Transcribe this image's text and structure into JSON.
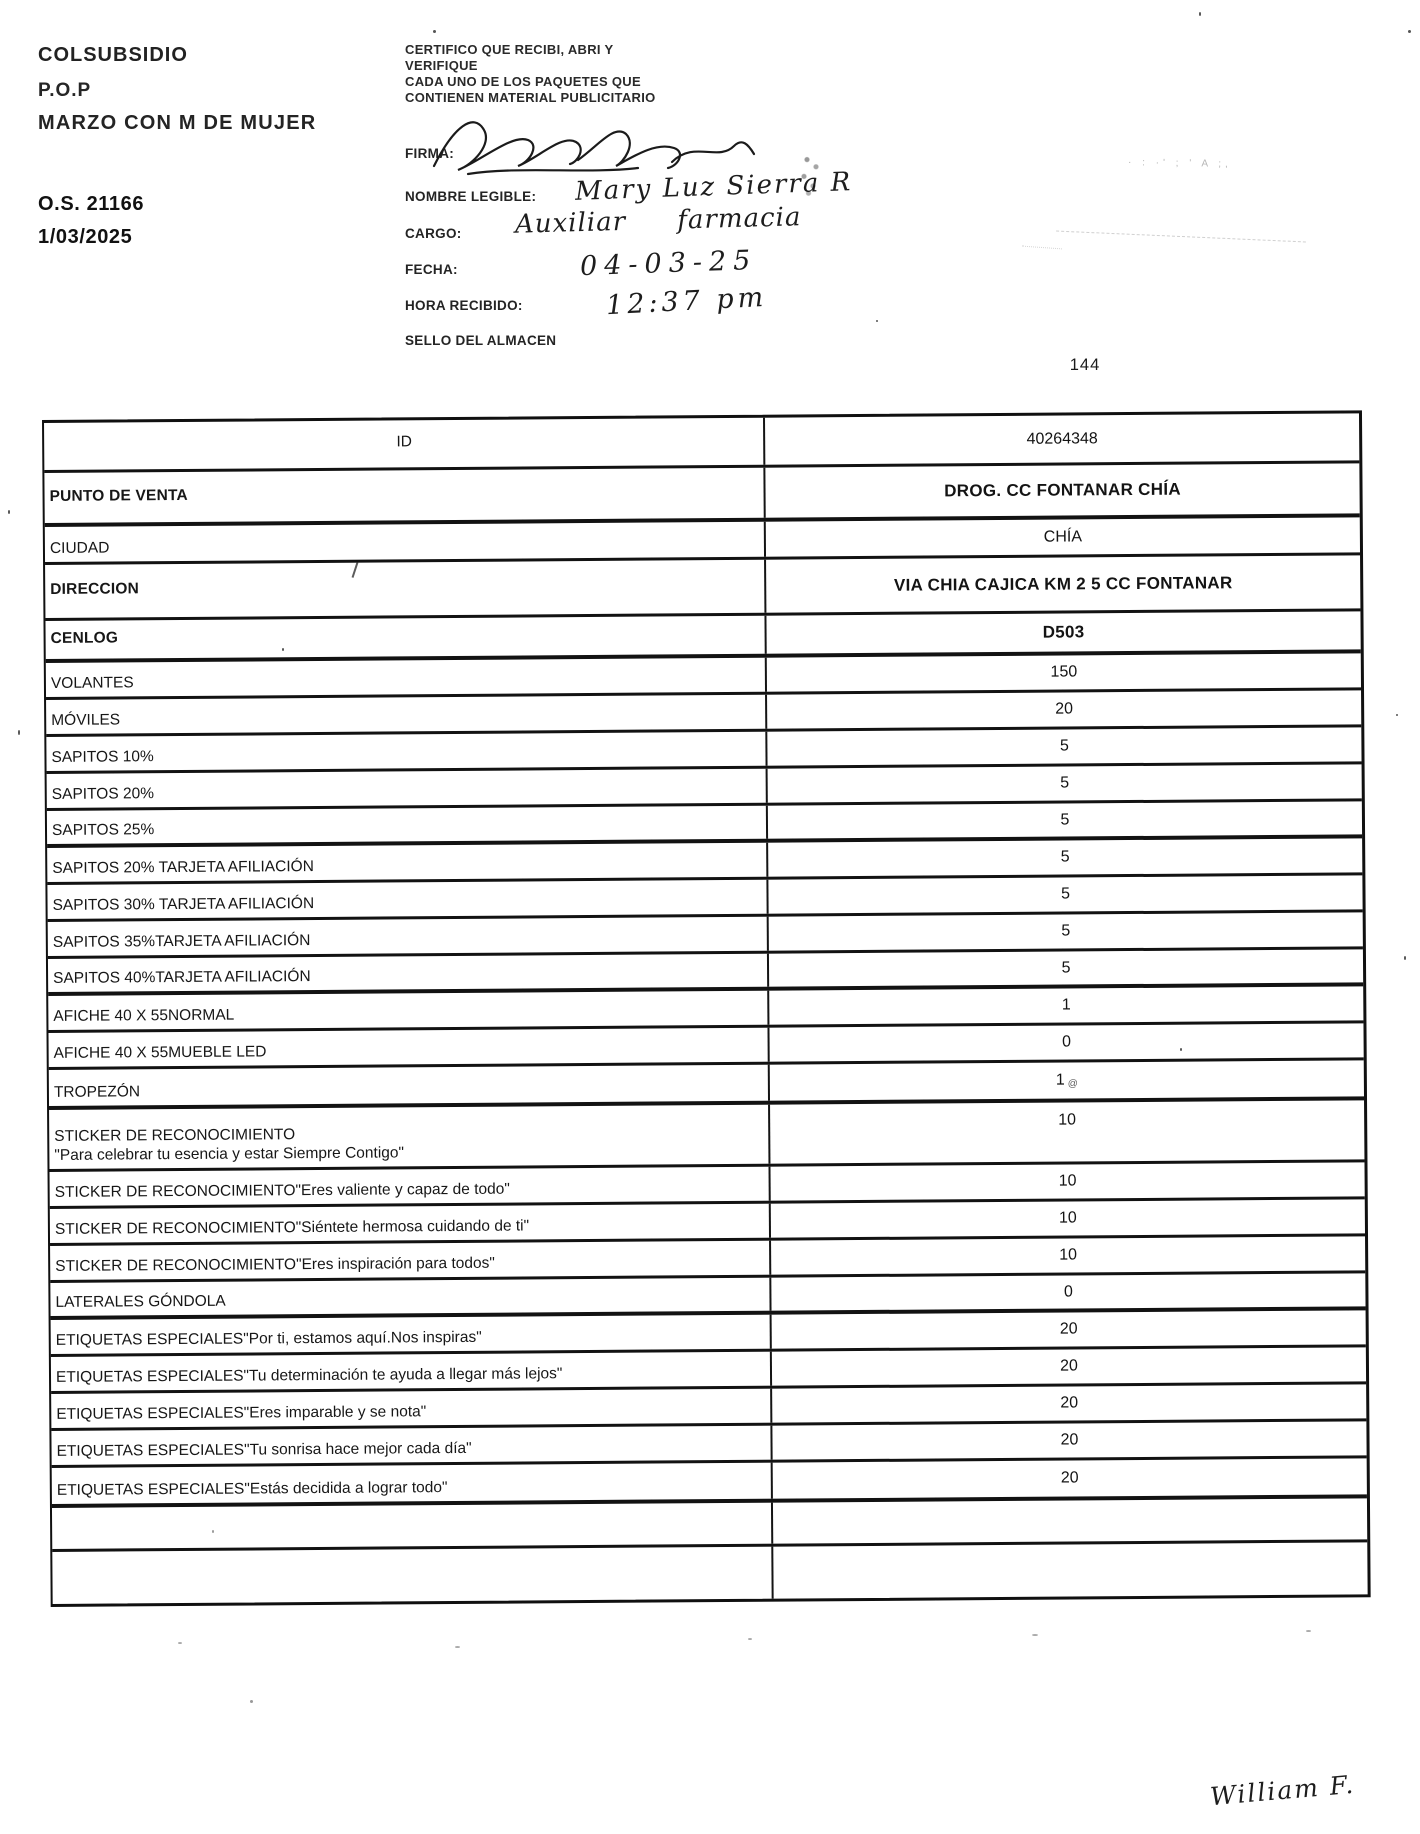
{
  "header": {
    "company": "COLSUBSIDIO",
    "program": "P.O.P",
    "campaign": "MARZO CON M DE MUJER",
    "order_number": "O.S. 21166",
    "order_date": "1/03/2025"
  },
  "certification": {
    "line1": "CERTIFICO QUE RECIBI, ABRI Y",
    "line2": "VERIFIQUE",
    "line3": "CADA UNO DE LOS PAQUETES QUE",
    "line4": "CONTIENEN MATERIAL PUBLICITARIO"
  },
  "fields": {
    "firma_label": "FIRMA:",
    "nombre_label": "NOMBRE LEGIBLE:",
    "cargo_label": "CARGO:",
    "fecha_label": "FECHA:",
    "hora_label": "HORA RECIBIDO:",
    "sello_label": "SELLO DEL ALMACEN"
  },
  "handwriting": {
    "nombre": "Mary Luz Sierra R",
    "cargo": "Auxiliar farmacia",
    "fecha": "04-03-25",
    "hora": "12:37 pm",
    "footer_note": "William F."
  },
  "page_number": "144",
  "table": {
    "rows": [
      {
        "label": "ID",
        "value": "40264348",
        "center_label": true
      },
      {
        "label": "PUNTO DE VENTA",
        "value": "DROG. CC FONTANAR CHÍA",
        "bold": true,
        "semibold_label": true
      },
      {
        "label": "CIUDAD",
        "value": "CHÍA"
      },
      {
        "label": "DIRECCION",
        "value": "VIA CHIA CAJICA KM 2 5 CC FONTANAR",
        "bold": true,
        "semibold_label": true
      },
      {
        "label": "CENLOG",
        "value": "D503",
        "bold": true,
        "semibold_label": true
      },
      {
        "label": "VOLANTES",
        "value": "150"
      },
      {
        "label": "MÓVILES",
        "value": "20"
      },
      {
        "label": "SAPITOS 10%",
        "value": "5"
      },
      {
        "label": "SAPITOS 20%",
        "value": "5"
      },
      {
        "label": "SAPITOS 25%",
        "value": "5"
      },
      {
        "label": "SAPITOS 20% TARJETA AFILIACIÓN",
        "value": "5"
      },
      {
        "label": "SAPITOS 30% TARJETA AFILIACIÓN",
        "value": "5"
      },
      {
        "label": "SAPITOS 35%TARJETA AFILIACIÓN",
        "value": "5"
      },
      {
        "label": "SAPITOS 40%TARJETA AFILIACIÓN",
        "value": "5"
      },
      {
        "label": "AFICHE 40 X 55NORMAL",
        "value": "1"
      },
      {
        "label": "AFICHE 40 X 55MUEBLE LED",
        "value": "0"
      },
      {
        "label": "TROPEZÓN",
        "value": "1",
        "mark": "@"
      },
      {
        "label": "STICKER DE RECONOCIMIENTO",
        "label2": "\"Para celebrar tu esencia y estar Siempre Contigo\"",
        "value": "10"
      },
      {
        "label": "STICKER DE RECONOCIMIENTO\"Eres valiente y capaz de todo\"",
        "value": "10"
      },
      {
        "label": "STICKER DE RECONOCIMIENTO\"Siéntete hermosa cuidando de ti\"",
        "value": "10"
      },
      {
        "label": "STICKER DE RECONOCIMIENTO\"Eres inspiración para todos\"",
        "value": "10"
      },
      {
        "label": "LATERALES GÓNDOLA",
        "value": "0"
      },
      {
        "label": "ETIQUETAS ESPECIALES\"Por ti, estamos aquí.Nos inspiras\"",
        "value": "20"
      },
      {
        "label": "ETIQUETAS ESPECIALES\"Tu determinación te ayuda a llegar más lejos\"",
        "value": "20"
      },
      {
        "label": "ETIQUETAS ESPECIALES\"Eres imparable y se nota\"",
        "value": "20"
      },
      {
        "label": "ETIQUETAS ESPECIALES\"Tu sonrisa hace mejor cada día\"",
        "value": "20"
      },
      {
        "label": "ETIQUETAS ESPECIALES\"Estás decidida a lograr todo\"",
        "value": "20"
      },
      {
        "label": "",
        "value": ""
      },
      {
        "label": "",
        "value": ""
      }
    ]
  }
}
